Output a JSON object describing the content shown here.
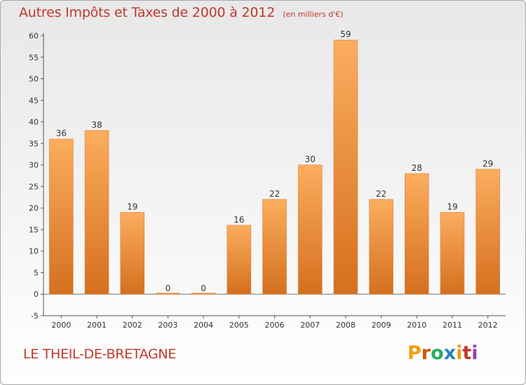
{
  "header": {
    "title": "Autres Impôts et Taxes de 2000 à 2012",
    "unit_note": "(en milliers d'€)"
  },
  "commune_name": "LE THEIL-DE-BRETAGNE",
  "logo": {
    "text": "Proxiti",
    "colors": [
      "#f39c12",
      "#d35400",
      "#27ae60",
      "#2980b9",
      "#f39c12",
      "#c0392b",
      "#8e44ad"
    ]
  },
  "colors": {
    "title": "#c0392b",
    "bar_light": "#f8aa5a",
    "bar_dark": "#d66f1d",
    "axis": "#444444",
    "grid": "#d0d0d0"
  },
  "chart_data": {
    "type": "bar",
    "categories": [
      "2000",
      "2001",
      "2002",
      "2003",
      "2004",
      "2005",
      "2006",
      "2007",
      "2008",
      "2009",
      "2010",
      "2011",
      "2012"
    ],
    "values": [
      36,
      38,
      19,
      0,
      0,
      16,
      22,
      30,
      59,
      22,
      28,
      19,
      29
    ],
    "data_labels": [
      "36",
      "38",
      "19",
      "0",
      "0",
      "16",
      "22",
      "30",
      "59",
      "22",
      "28",
      "19",
      "29"
    ],
    "y_ticks": [
      "-5",
      "0",
      "5",
      "10",
      "15",
      "20",
      "25",
      "30",
      "35",
      "40",
      "45",
      "50",
      "55",
      "60"
    ],
    "ylim": [
      -5,
      60
    ],
    "grid": false,
    "legend": "none"
  }
}
